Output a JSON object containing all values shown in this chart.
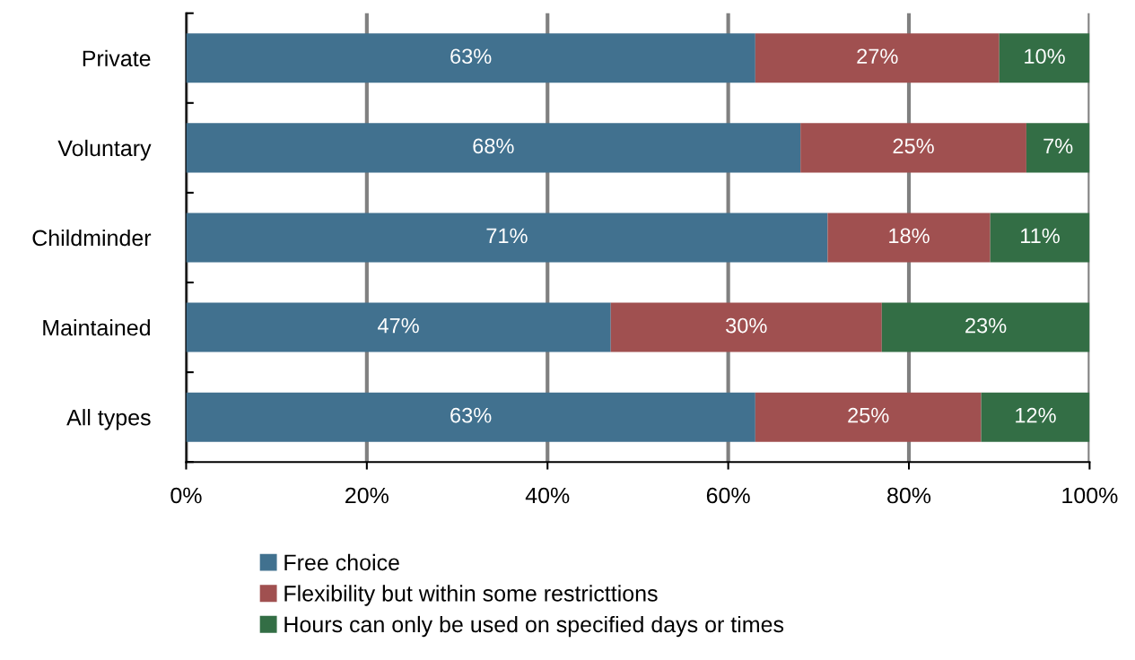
{
  "chart_data": {
    "type": "bar",
    "orientation": "horizontal",
    "stacked": true,
    "categories": [
      "Private",
      "Voluntary",
      "Childminder",
      "Maintained",
      "All types"
    ],
    "series": [
      {
        "name": "Free choice",
        "color": "#41718f",
        "values": [
          63,
          68,
          71,
          47,
          63
        ],
        "value_labels": [
          "63%",
          "68%",
          "71%",
          "47%",
          "63%"
        ]
      },
      {
        "name": "Flexibility but within some restricttions",
        "color": "#a05050",
        "values": [
          27,
          25,
          18,
          30,
          25
        ],
        "value_labels": [
          "27%",
          "25%",
          "18%",
          "30%",
          "25%"
        ]
      },
      {
        "name": "Hours can only be used on specified days or times",
        "color": "#336e45",
        "values": [
          10,
          7,
          11,
          23,
          12
        ],
        "value_labels": [
          "10%",
          "7%",
          "11%",
          "23%",
          "12%"
        ]
      }
    ],
    "xlim": [
      0,
      100
    ],
    "xticks": [
      {
        "value": 0,
        "label": "0%"
      },
      {
        "value": 20,
        "label": "20%"
      },
      {
        "value": 40,
        "label": "40%"
      },
      {
        "value": 60,
        "label": "60%"
      },
      {
        "value": 80,
        "label": "80%"
      },
      {
        "value": 100,
        "label": "100%"
      }
    ],
    "grid": "x",
    "legend": "bottom"
  }
}
